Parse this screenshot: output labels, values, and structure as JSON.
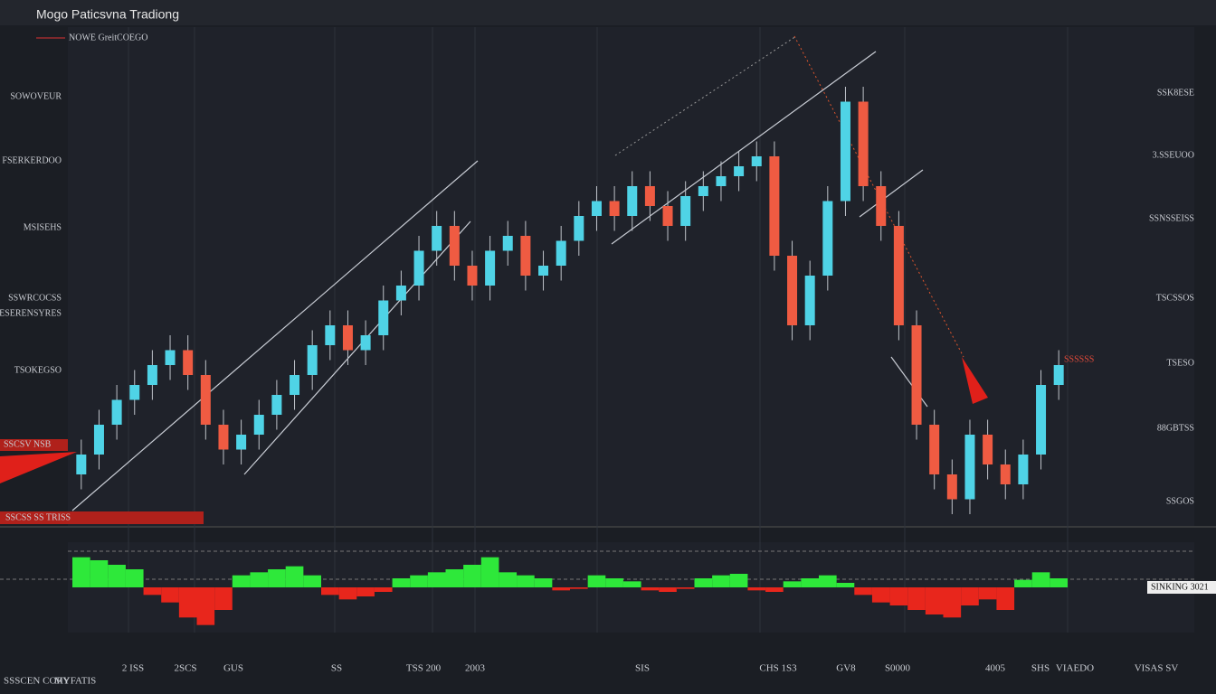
{
  "chart_data": {
    "type": "candlestick",
    "title": "Mogo Paticsvna Tradiong",
    "legend": "NOWE GreitCOEGO",
    "left_labels": [
      "SOWOVEUR",
      "FSERKERDOO",
      "MSISEHS",
      "SSWRCOCSS",
      "ESERENSYRES",
      "TSOKEGSO"
    ],
    "right_labels": [
      "SSK8ESE",
      "3.SSEUOO",
      "SSNSSEISS",
      "TSCSSOS",
      "TSESO",
      "88GBTSS",
      "SSGOS"
    ],
    "bottom_labels": [
      "2 ISS",
      "2SCS",
      "GUS",
      "SS",
      "TSS 200",
      "2003",
      "SIS",
      "CHS 1S3",
      "GV8",
      "S0000",
      "4005",
      "SHS",
      "VIAEDO",
      "VISAS SV"
    ],
    "flag_labels": [
      "SSCSV NSB",
      "SSCSS SS TRISS",
      "SSSSSS",
      "SINKING 3021"
    ],
    "footer": [
      "SSSCEN CORY",
      "MYFATIS"
    ],
    "categories": [
      null,
      null,
      null,
      null,
      null,
      null,
      null,
      null,
      null,
      null,
      null,
      null,
      null,
      null,
      null,
      null,
      null,
      null,
      null,
      null,
      null,
      null,
      null,
      null,
      null,
      null,
      null,
      null,
      null,
      null,
      null,
      null,
      null,
      null,
      null,
      null,
      null,
      null,
      null,
      null,
      null,
      null,
      null,
      null,
      null,
      null,
      null,
      null,
      null,
      null,
      null,
      null,
      null,
      null,
      null,
      null
    ],
    "open": [
      10,
      14,
      20,
      25,
      28,
      32,
      35,
      30,
      20,
      15,
      18,
      22,
      26,
      30,
      36,
      40,
      35,
      38,
      45,
      48,
      55,
      60,
      52,
      48,
      55,
      58,
      50,
      52,
      57,
      62,
      65,
      62,
      68,
      64,
      60,
      66,
      68,
      70,
      72,
      74,
      54,
      40,
      50,
      65,
      85,
      68,
      60,
      40,
      20,
      10,
      5,
      18,
      12,
      8,
      14,
      28
    ],
    "high": [
      17,
      23,
      28,
      31,
      35,
      38,
      38,
      33,
      23,
      21,
      25,
      29,
      33,
      39,
      43,
      43,
      41,
      48,
      51,
      58,
      63,
      63,
      55,
      58,
      61,
      61,
      55,
      60,
      65,
      68,
      68,
      71,
      71,
      67,
      69,
      71,
      73,
      75,
      77,
      77,
      57,
      53,
      68,
      88,
      88,
      71,
      63,
      43,
      23,
      13,
      21,
      21,
      15,
      17,
      31,
      35
    ],
    "low": [
      7,
      11,
      17,
      22,
      25,
      29,
      27,
      17,
      12,
      12,
      15,
      19,
      23,
      27,
      33,
      32,
      32,
      35,
      42,
      45,
      52,
      49,
      45,
      45,
      52,
      47,
      47,
      49,
      54,
      59,
      59,
      59,
      61,
      57,
      57,
      63,
      65,
      67,
      69,
      51,
      37,
      37,
      47,
      62,
      65,
      57,
      37,
      17,
      7,
      2,
      2,
      9,
      5,
      5,
      11,
      25
    ],
    "close": [
      14,
      20,
      25,
      28,
      32,
      35,
      30,
      20,
      15,
      18,
      22,
      26,
      30,
      36,
      40,
      35,
      38,
      45,
      48,
      55,
      60,
      52,
      48,
      55,
      58,
      50,
      52,
      57,
      62,
      65,
      62,
      68,
      64,
      60,
      66,
      68,
      70,
      72,
      74,
      54,
      40,
      50,
      65,
      85,
      68,
      60,
      40,
      20,
      10,
      5,
      18,
      12,
      8,
      14,
      28,
      32
    ],
    "ylim": [
      0,
      100
    ],
    "up_color": "#4fd3e6",
    "down_color": "#ef5b42",
    "oscillator": [
      20,
      18,
      15,
      12,
      -5,
      -10,
      -20,
      -25,
      -15,
      8,
      10,
      12,
      14,
      8,
      -5,
      -8,
      -6,
      -3,
      6,
      8,
      10,
      12,
      15,
      20,
      10,
      8,
      6,
      -2,
      -1,
      8,
      6,
      4,
      -2,
      -3,
      -1,
      6,
      8,
      9,
      -2,
      -3,
      4,
      6,
      8,
      3,
      -5,
      -10,
      -12,
      -15,
      -18,
      -20,
      -12,
      -8,
      -15,
      5,
      10,
      6
    ],
    "oscillator_ylim": [
      -30,
      30
    ],
    "osc_up_color": "#2ee83a",
    "osc_down_color": "#e8261c"
  }
}
